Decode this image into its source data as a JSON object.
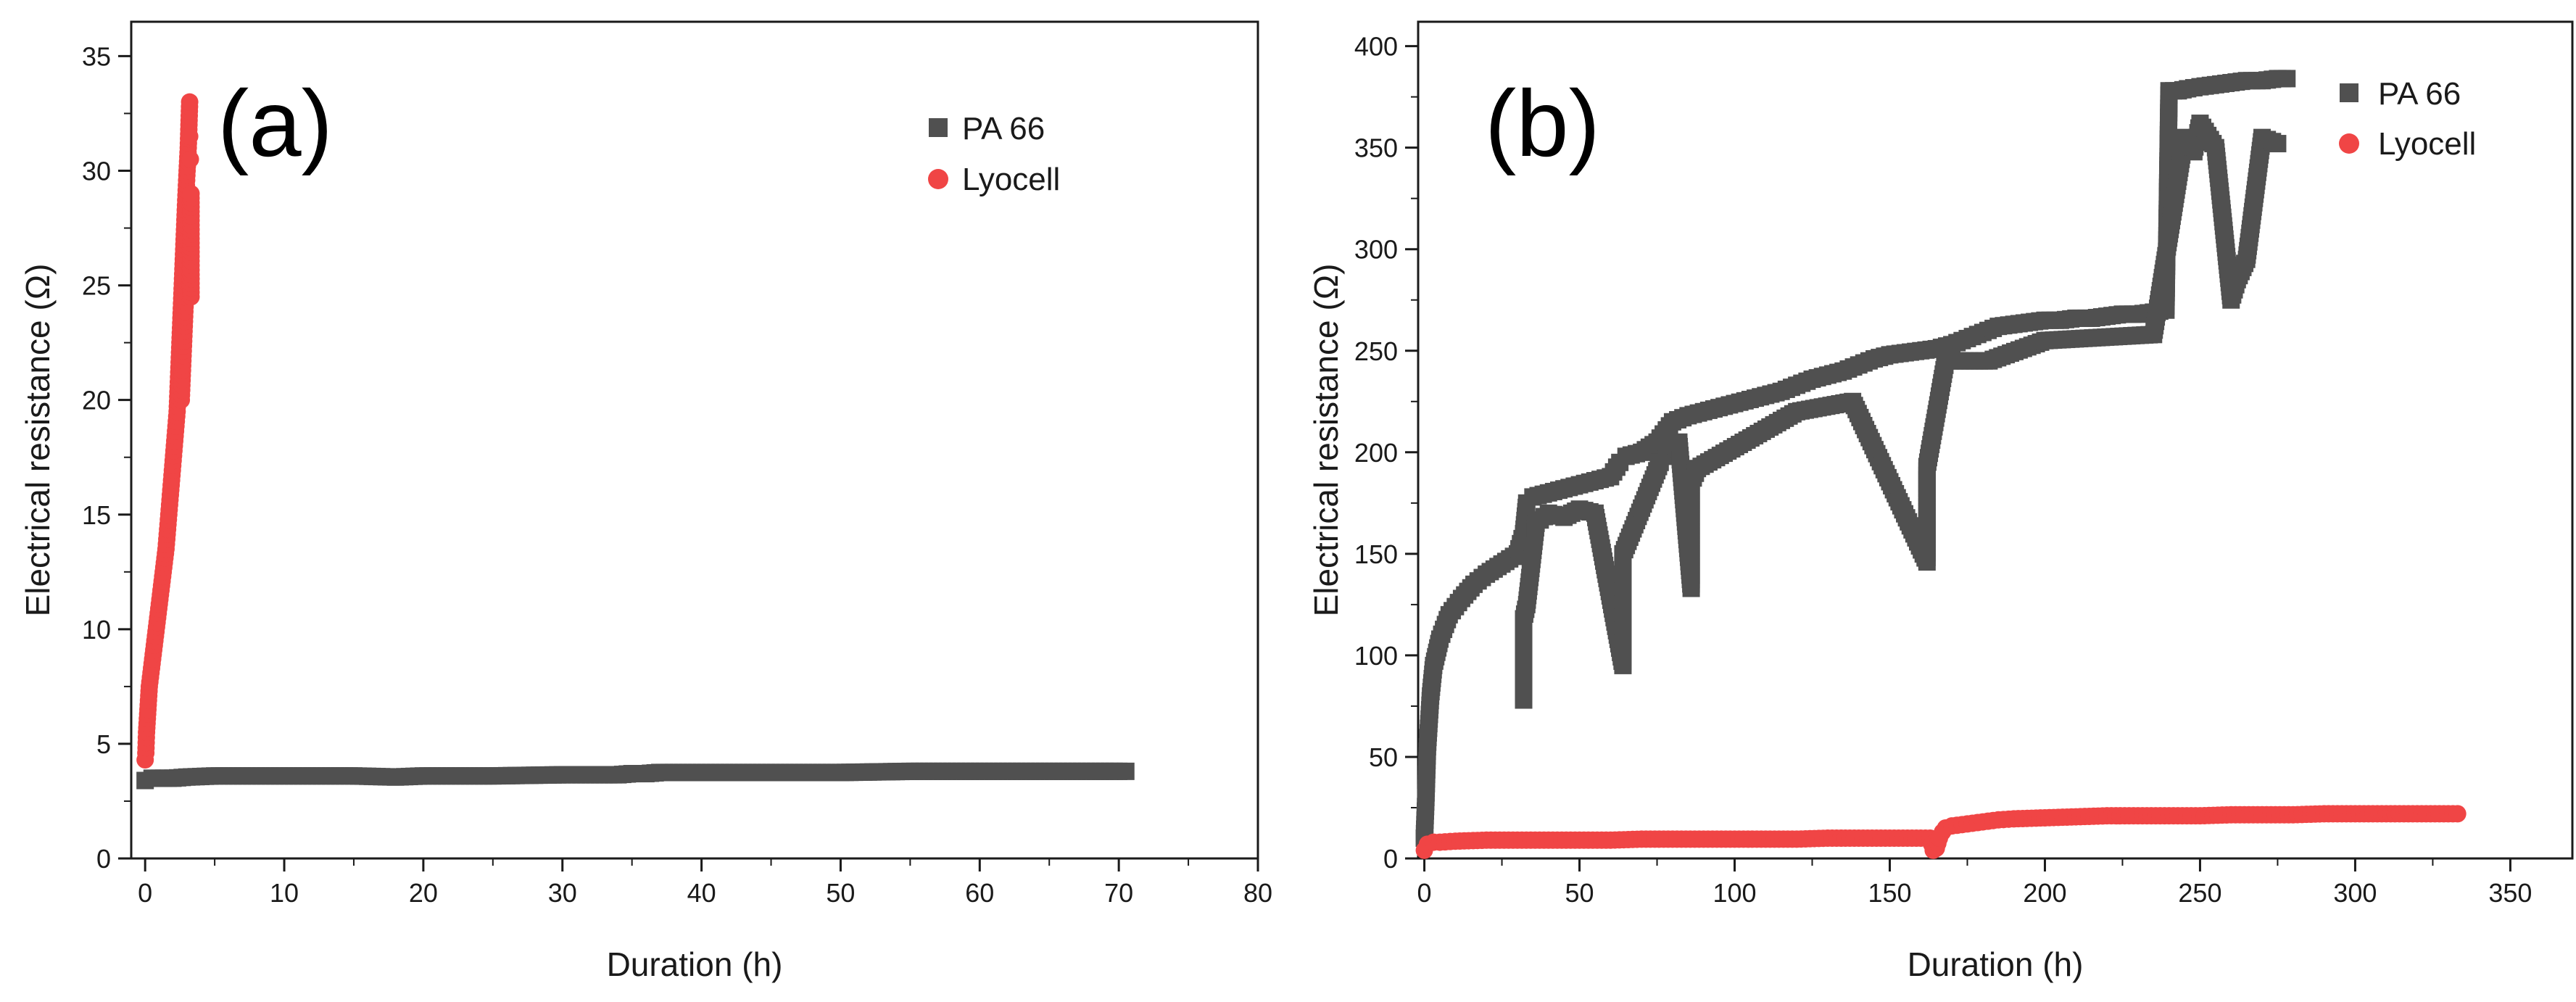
{
  "colors": {
    "pa66": "#505050",
    "lyocell": "#f04545",
    "axis": "#1a1a1a"
  },
  "chart_data": [
    {
      "type": "scatter",
      "panel_label": "(a)",
      "xlabel": "Duration (h)",
      "ylabel": "Electrical resistance (Ω)",
      "xlim": [
        -1,
        80
      ],
      "ylim": [
        0,
        36.5
      ],
      "xticks": [
        0,
        10,
        20,
        30,
        40,
        50,
        60,
        70,
        80
      ],
      "yticks": [
        0,
        5,
        10,
        15,
        20,
        25,
        30,
        35
      ],
      "xtick_labels": [
        "0",
        "10",
        "20",
        "30",
        "40",
        "50",
        "60",
        "70",
        "80"
      ],
      "ytick_labels": [
        "0",
        "5",
        "10",
        "15",
        "20",
        "25",
        "30",
        "35"
      ],
      "legend_position": "top-right",
      "series": [
        {
          "name": "PA 66",
          "marker": "square",
          "points": [
            [
              0,
              3.4
            ],
            [
              0.5,
              3.5
            ],
            [
              1,
              3.5
            ],
            [
              2,
              3.5
            ],
            [
              3,
              3.55
            ],
            [
              5,
              3.6
            ],
            [
              8,
              3.6
            ],
            [
              10,
              3.6
            ],
            [
              15,
              3.6
            ],
            [
              18,
              3.55
            ],
            [
              20,
              3.6
            ],
            [
              25,
              3.6
            ],
            [
              30,
              3.65
            ],
            [
              34,
              3.65
            ],
            [
              35,
              3.7
            ],
            [
              36,
              3.7
            ],
            [
              37,
              3.75
            ],
            [
              40,
              3.75
            ],
            [
              45,
              3.75
            ],
            [
              50,
              3.75
            ],
            [
              55,
              3.8
            ],
            [
              60,
              3.8
            ],
            [
              65,
              3.8
            ],
            [
              70,
              3.8
            ],
            [
              70.5,
              3.8
            ]
          ]
        },
        {
          "name": "Lyocell",
          "marker": "circle",
          "points": [
            [
              0,
              4.3
            ],
            [
              0.05,
              4.6
            ],
            [
              0.1,
              5.5
            ],
            [
              0.2,
              6.5
            ],
            [
              0.3,
              7.5
            ],
            [
              0.5,
              8.5
            ],
            [
              0.7,
              9.5
            ],
            [
              0.9,
              10.5
            ],
            [
              1.1,
              11.5
            ],
            [
              1.3,
              12.5
            ],
            [
              1.5,
              13.5
            ],
            [
              1.7,
              15
            ],
            [
              1.9,
              16.5
            ],
            [
              2.1,
              18
            ],
            [
              2.3,
              19.5
            ],
            [
              2.4,
              21
            ],
            [
              2.5,
              22.5
            ],
            [
              2.6,
              24
            ],
            [
              2.7,
              25.5
            ],
            [
              2.8,
              27
            ],
            [
              2.9,
              28.5
            ],
            [
              3.0,
              29.8
            ],
            [
              3.1,
              31
            ],
            [
              3.15,
              32
            ],
            [
              3.2,
              33
            ],
            [
              2.6,
              20
            ],
            [
              2.7,
              21.5
            ],
            [
              2.8,
              23
            ],
            [
              2.9,
              24.5
            ],
            [
              3.0,
              26
            ],
            [
              3.1,
              27
            ],
            [
              3.2,
              26.5
            ],
            [
              3.25,
              25
            ],
            [
              3.3,
              24.5
            ],
            [
              3.3,
              29
            ],
            [
              3.25,
              30.5
            ],
            [
              3.2,
              31.5
            ]
          ]
        }
      ]
    },
    {
      "type": "scatter",
      "panel_label": "(b)",
      "xlabel": "Duration (h)",
      "ylabel": "Electrical resistance (Ω)",
      "xlim": [
        -2,
        370
      ],
      "ylim": [
        0,
        412
      ],
      "xticks": [
        0,
        50,
        100,
        150,
        200,
        250,
        300,
        350
      ],
      "yticks": [
        0,
        50,
        100,
        150,
        200,
        250,
        300,
        350,
        400
      ],
      "xtick_labels": [
        "0",
        "50",
        "100",
        "150",
        "200",
        "250",
        "300",
        "350"
      ],
      "ytick_labels": [
        "0",
        "50",
        "100",
        "150",
        "200",
        "250",
        "300",
        "350",
        "400"
      ],
      "legend_position": "top-right",
      "series": [
        {
          "name": "PA 66",
          "marker": "square",
          "points": [
            [
              0,
              10
            ],
            [
              0.5,
              30
            ],
            [
              1,
              55
            ],
            [
              2,
              80
            ],
            [
              3,
              95
            ],
            [
              5,
              108
            ],
            [
              8,
              120
            ],
            [
              12,
              128
            ],
            [
              16,
              135
            ],
            [
              20,
              140
            ],
            [
              25,
              145
            ],
            [
              30,
              150
            ],
            [
              32,
              160
            ],
            [
              33,
              175
            ],
            [
              35,
              178
            ],
            [
              40,
              180
            ],
            [
              45,
              182
            ],
            [
              50,
              184
            ],
            [
              55,
              186
            ],
            [
              60,
              188
            ],
            [
              63,
              195
            ],
            [
              65,
              198
            ],
            [
              70,
              200
            ],
            [
              75,
              205
            ],
            [
              80,
              215
            ],
            [
              85,
              218
            ],
            [
              90,
              220
            ],
            [
              95,
              222
            ],
            [
              100,
              224
            ],
            [
              105,
              226
            ],
            [
              110,
              228
            ],
            [
              115,
              230
            ],
            [
              120,
              233
            ],
            [
              125,
              236
            ],
            [
              130,
              238
            ],
            [
              135,
              240
            ],
            [
              140,
              243
            ],
            [
              145,
              246
            ],
            [
              150,
              248
            ],
            [
              155,
              249
            ],
            [
              160,
              250
            ],
            [
              165,
              251
            ],
            [
              170,
              253
            ],
            [
              175,
              256
            ],
            [
              180,
              259
            ],
            [
              185,
              262
            ],
            [
              190,
              263
            ],
            [
              195,
              264
            ],
            [
              200,
              265
            ],
            [
              205,
              265
            ],
            [
              210,
              266
            ],
            [
              215,
              266
            ],
            [
              220,
              267
            ],
            [
              225,
              268
            ],
            [
              230,
              268
            ],
            [
              235,
              269
            ],
            [
              239,
              270
            ],
            [
              240,
              378
            ],
            [
              243,
              378
            ],
            [
              246,
              379
            ],
            [
              250,
              380
            ],
            [
              255,
              381
            ],
            [
              260,
              382
            ],
            [
              265,
              383
            ],
            [
              270,
              383
            ],
            [
              275,
              384
            ],
            [
              278,
              384
            ],
            [
              32,
              78
            ],
            [
              32,
              118
            ],
            [
              33,
              125
            ],
            [
              36,
              165
            ],
            [
              40,
              170
            ],
            [
              45,
              168
            ],
            [
              50,
              172
            ],
            [
              55,
              170
            ],
            [
              64,
              95
            ],
            [
              64,
              140
            ],
            [
              64,
              150
            ],
            [
              76,
              195
            ],
            [
              78,
              198
            ],
            [
              82,
              205
            ],
            [
              86,
              133
            ],
            [
              86,
              185
            ],
            [
              88,
              192
            ],
            [
              120,
              220
            ],
            [
              138,
              225
            ],
            [
              162,
              146
            ],
            [
              162,
              180
            ],
            [
              162,
              193
            ],
            [
              168,
              245
            ],
            [
              182,
              245
            ],
            [
              200,
              255
            ],
            [
              235,
              258
            ],
            [
              245,
              355
            ],
            [
              248,
              348
            ],
            [
              250,
              362
            ],
            [
              255,
              350
            ],
            [
              260,
              275
            ],
            [
              262,
              285
            ],
            [
              265,
              295
            ],
            [
              270,
              355
            ],
            [
              275,
              352
            ]
          ]
        },
        {
          "name": "Lyocell",
          "marker": "circle",
          "points": [
            [
              0,
              4
            ],
            [
              1,
              7
            ],
            [
              3,
              8
            ],
            [
              5,
              8
            ],
            [
              10,
              8.5
            ],
            [
              20,
              9
            ],
            [
              30,
              9
            ],
            [
              40,
              9
            ],
            [
              50,
              9
            ],
            [
              60,
              9
            ],
            [
              70,
              9.5
            ],
            [
              80,
              9.5
            ],
            [
              90,
              9.5
            ],
            [
              100,
              9.5
            ],
            [
              110,
              9.5
            ],
            [
              120,
              9.5
            ],
            [
              130,
              10
            ],
            [
              140,
              10
            ],
            [
              150,
              10
            ],
            [
              160,
              10
            ],
            [
              163,
              10
            ],
            [
              164,
              4
            ],
            [
              165,
              5
            ],
            [
              166,
              10
            ],
            [
              167,
              13
            ],
            [
              168,
              15
            ],
            [
              170,
              16
            ],
            [
              175,
              17
            ],
            [
              180,
              18
            ],
            [
              185,
              19
            ],
            [
              190,
              19.5
            ],
            [
              200,
              20
            ],
            [
              210,
              20.5
            ],
            [
              220,
              21
            ],
            [
              230,
              21
            ],
            [
              240,
              21
            ],
            [
              250,
              21
            ],
            [
              260,
              21.5
            ],
            [
              270,
              21.5
            ],
            [
              280,
              21.5
            ],
            [
              290,
              22
            ],
            [
              300,
              22
            ],
            [
              310,
              22
            ],
            [
              320,
              22
            ],
            [
              330,
              22
            ],
            [
              333,
              22
            ]
          ]
        }
      ]
    }
  ]
}
